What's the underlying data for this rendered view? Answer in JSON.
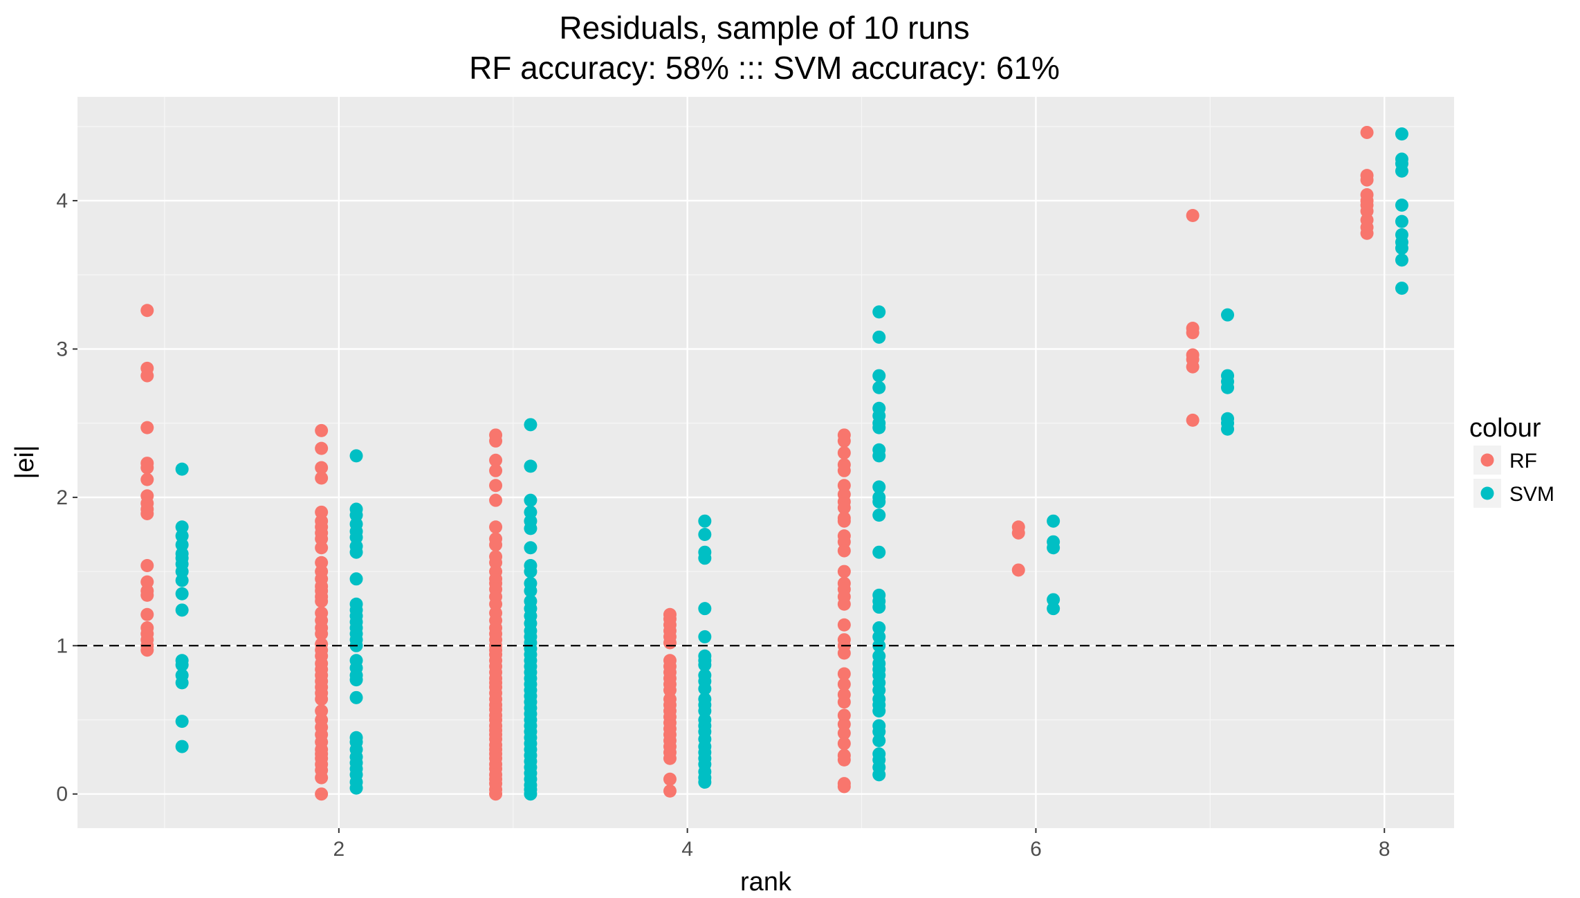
{
  "chart_data": {
    "type": "scatter",
    "title": "Residuals, sample of 10 runs",
    "subtitle": "RF accuracy: 58% ::: SVM accuracy: 61%",
    "xlabel": "rank",
    "ylabel": "|ei|",
    "xlim": [
      0.5,
      8.4
    ],
    "ylim": [
      -0.23,
      4.7
    ],
    "x_ticks": [
      2,
      4,
      6,
      8
    ],
    "y_ticks": [
      0,
      1,
      2,
      3,
      4
    ],
    "grid": true,
    "reference_line": {
      "y": 1,
      "style": "dashed"
    },
    "legend": {
      "title": "colour",
      "position": "right"
    },
    "series": [
      {
        "name": "RF",
        "color": "#F8766D",
        "x": 0.9,
        "points_x": [
          1.9,
          2.9,
          3.9,
          4.9,
          5.9,
          6.9,
          7.9
        ],
        "values": [
          [
            3.26,
            2.87,
            2.82,
            2.47,
            2.23,
            2.2,
            2.12,
            2.01,
            1.96,
            1.92,
            1.89,
            1.54,
            1.43,
            1.37,
            1.34,
            1.21,
            1.12,
            1.08,
            1.04,
            1.0,
            0.97
          ],
          [
            2.45,
            2.33,
            2.2,
            2.13,
            1.9,
            1.84,
            1.8,
            1.76,
            1.72,
            1.66,
            1.56,
            1.5,
            1.45,
            1.4,
            1.37,
            1.33,
            1.3,
            1.22,
            1.17,
            1.12,
            1.08,
            1.01,
            0.97,
            0.93,
            0.88,
            0.84,
            0.8,
            0.76,
            0.72,
            0.68,
            0.64,
            0.56,
            0.5,
            0.45,
            0.4,
            0.35,
            0.3,
            0.27,
            0.24,
            0.2,
            0.16,
            0.11,
            0.0
          ],
          [
            2.42,
            2.38,
            2.25,
            2.18,
            2.08,
            1.98,
            1.8,
            1.72,
            1.68,
            1.6,
            1.56,
            1.5,
            1.45,
            1.42,
            1.38,
            1.33,
            1.28,
            1.22,
            1.17,
            1.12,
            1.08,
            1.04,
            1.0,
            0.97,
            0.94,
            0.9,
            0.86,
            0.82,
            0.78,
            0.75,
            0.72,
            0.68,
            0.64,
            0.6,
            0.57,
            0.53,
            0.5,
            0.46,
            0.43,
            0.4,
            0.37,
            0.33,
            0.3,
            0.27,
            0.24,
            0.2,
            0.17,
            0.13,
            0.1,
            0.07,
            0.03,
            0.0
          ],
          [
            1.21,
            1.18,
            1.14,
            1.1,
            1.06,
            1.02,
            0.9,
            0.86,
            0.82,
            0.78,
            0.74,
            0.7,
            0.64,
            0.6,
            0.56,
            0.52,
            0.48,
            0.44,
            0.4,
            0.36,
            0.32,
            0.28,
            0.24,
            0.1,
            0.02
          ],
          [
            2.42,
            2.38,
            2.3,
            2.22,
            2.18,
            2.08,
            2.02,
            1.97,
            1.93,
            1.86,
            1.84,
            1.74,
            1.7,
            1.64,
            1.5,
            1.42,
            1.38,
            1.33,
            1.28,
            1.14,
            1.04,
            1.0,
            0.95,
            0.81,
            0.74,
            0.67,
            0.62,
            0.53,
            0.47,
            0.41,
            0.34,
            0.26,
            0.23,
            0.07,
            0.05
          ],
          [
            1.8,
            1.76,
            1.51
          ],
          [
            3.9,
            3.14,
            3.11,
            2.96,
            2.93,
            2.88,
            2.52
          ],
          [
            4.46,
            4.17,
            4.14,
            4.04,
            4.0,
            3.97,
            3.93,
            3.87,
            3.82,
            3.78
          ]
        ]
      },
      {
        "name": "SVM",
        "color": "#00BFC4",
        "x": 1.1,
        "points_x": [
          2.1,
          3.1,
          4.1,
          5.1,
          6.1,
          7.1,
          8.1
        ],
        "values": [
          [
            2.19,
            1.8,
            1.74,
            1.68,
            1.62,
            1.59,
            1.55,
            1.5,
            1.44,
            1.35,
            1.24,
            0.9,
            0.87,
            0.8,
            0.75,
            0.49,
            0.32
          ],
          [
            2.28,
            1.92,
            1.88,
            1.82,
            1.77,
            1.73,
            1.67,
            1.63,
            1.45,
            1.28,
            1.24,
            1.2,
            1.16,
            1.12,
            1.08,
            1.04,
            1.0,
            0.9,
            0.85,
            0.8,
            0.77,
            0.65,
            0.38,
            0.35,
            0.3,
            0.25,
            0.21,
            0.17,
            0.13,
            0.08,
            0.04
          ],
          [
            2.49,
            2.21,
            1.98,
            1.9,
            1.84,
            1.79,
            1.66,
            1.54,
            1.5,
            1.42,
            1.37,
            1.3,
            1.25,
            1.2,
            1.15,
            1.1,
            1.06,
            1.02,
            0.98,
            0.94,
            0.9,
            0.86,
            0.82,
            0.78,
            0.74,
            0.7,
            0.66,
            0.62,
            0.58,
            0.54,
            0.5,
            0.46,
            0.42,
            0.38,
            0.34,
            0.3,
            0.26,
            0.22,
            0.18,
            0.14,
            0.1,
            0.06,
            0.03,
            0.0
          ],
          [
            1.84,
            1.75,
            1.63,
            1.59,
            1.25,
            1.06,
            0.93,
            0.9,
            0.87,
            0.8,
            0.76,
            0.71,
            0.64,
            0.6,
            0.56,
            0.5,
            0.46,
            0.42,
            0.37,
            0.32,
            0.28,
            0.24,
            0.2,
            0.15,
            0.11,
            0.08
          ],
          [
            3.25,
            3.08,
            2.82,
            2.74,
            2.6,
            2.55,
            2.5,
            2.47,
            2.32,
            2.28,
            2.07,
            2.0,
            1.97,
            1.88,
            1.63,
            1.34,
            1.3,
            1.26,
            1.12,
            1.06,
            1.0,
            0.93,
            0.88,
            0.84,
            0.8,
            0.75,
            0.7,
            0.64,
            0.6,
            0.56,
            0.46,
            0.42,
            0.36,
            0.27,
            0.23,
            0.18,
            0.13
          ],
          [
            1.84,
            1.7,
            1.66,
            1.31,
            1.25
          ],
          [
            3.23,
            2.82,
            2.78,
            2.74,
            2.53,
            2.5,
            2.46
          ],
          [
            4.45,
            4.28,
            4.25,
            4.2,
            3.97,
            3.86,
            3.77,
            3.72,
            3.68,
            3.6,
            3.41
          ]
        ]
      }
    ]
  }
}
